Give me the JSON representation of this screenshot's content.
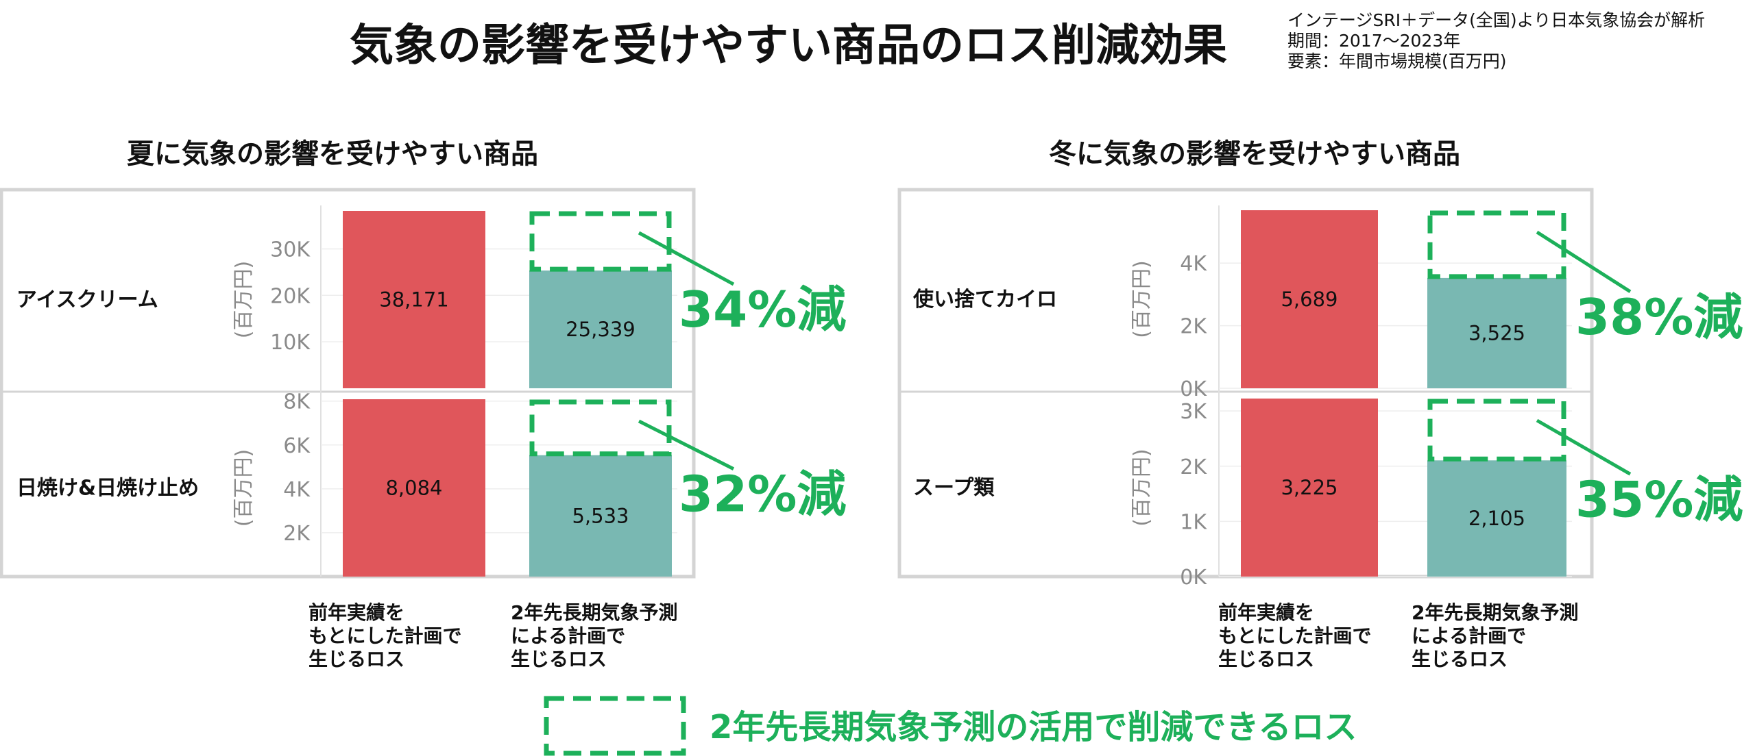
{
  "header": {
    "title": "気象の影響を受けやすい商品のロス削減効果",
    "source_lines": [
      "インテージSRI＋データ(全国)より日本気象協会が解析",
      "期間：2017～2023年",
      "要素：年間市場規模(百万円)"
    ]
  },
  "colors": {
    "prior_bar": "#e0565b",
    "forecast_bar": "#79b8b2",
    "reduction": "#1db05a",
    "axis_text": "#8a8a8a",
    "frame": "#d4d4d4"
  },
  "categories": [
    [
      "前年実績を",
      "もとにした計画で",
      "生じるロス"
    ],
    [
      "2年先長期気象予測",
      "による計画で",
      "生じるロス"
    ]
  ],
  "legend": {
    "label": "2年先長期気象予測の活用で削減できるロス"
  },
  "chart_data": [
    {
      "type": "bar",
      "title": "夏に気象の影響を受けやすい商品",
      "ylabel": "(百万円)",
      "rows": [
        {
          "label": "アイスクリーム",
          "values": [
            38171,
            25339
          ],
          "value_labels": [
            "38,171",
            "25,339"
          ],
          "reduction": "34%減",
          "ylim": [
            0,
            38171
          ],
          "ticks": [
            10000,
            20000,
            30000
          ],
          "tick_labels": [
            "10K",
            "20K",
            "30K"
          ]
        },
        {
          "label": "日焼け&日焼け止め",
          "values": [
            8084,
            5533
          ],
          "value_labels": [
            "8,084",
            "5,533"
          ],
          "reduction": "32%減",
          "ylim": [
            0,
            8084
          ],
          "ticks": [
            2000,
            4000,
            6000,
            8000
          ],
          "tick_labels": [
            "2K",
            "4K",
            "6K",
            "8K"
          ]
        }
      ]
    },
    {
      "type": "bar",
      "title": "冬に気象の影響を受けやすい商品",
      "ylabel": "(百万円)",
      "rows": [
        {
          "label": "使い捨てカイロ",
          "values": [
            5689,
            3525
          ],
          "value_labels": [
            "5,689",
            "3,525"
          ],
          "reduction": "38%減",
          "ylim": [
            0,
            5689
          ],
          "ticks": [
            0,
            2000,
            4000
          ],
          "tick_labels": [
            "0K",
            "2K",
            "4K"
          ]
        },
        {
          "label": "スープ類",
          "values": [
            3225,
            2105
          ],
          "value_labels": [
            "3,225",
            "2,105"
          ],
          "reduction": "35%減",
          "ylim": [
            0,
            3225
          ],
          "ticks": [
            0,
            1000,
            2000,
            3000
          ],
          "tick_labels": [
            "0K",
            "1K",
            "2K",
            "3K"
          ]
        }
      ]
    }
  ]
}
